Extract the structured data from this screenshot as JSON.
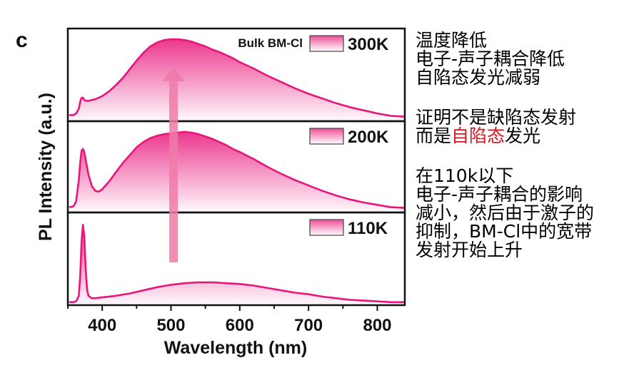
{
  "panel_label": "c",
  "chart_data": {
    "type": "line",
    "layout": "stacked-panels",
    "xlabel": "Wavelength (nm)",
    "ylabel": "PL Intensity (a.u.)",
    "xlim": [
      350,
      840
    ],
    "xticks": [
      400,
      500,
      600,
      700,
      800
    ],
    "sample_label": "Bulk BM-Cl",
    "color": "#e8157a",
    "arrow_color": "#f07aa8",
    "panels": [
      {
        "name": "300K",
        "ylim": [
          0,
          1.12
        ],
        "x": [
          352,
          358,
          362,
          366,
          368,
          370,
          372,
          374,
          376,
          380,
          385,
          390,
          395,
          400,
          410,
          420,
          430,
          440,
          450,
          460,
          470,
          480,
          490,
          500,
          510,
          520,
          530,
          540,
          550,
          560,
          570,
          580,
          590,
          600,
          620,
          640,
          660,
          680,
          700,
          720,
          740,
          760,
          780,
          800,
          820,
          840
        ],
        "y": [
          0.06,
          0.06,
          0.08,
          0.14,
          0.23,
          0.28,
          0.28,
          0.25,
          0.24,
          0.24,
          0.25,
          0.26,
          0.28,
          0.3,
          0.36,
          0.44,
          0.53,
          0.64,
          0.75,
          0.85,
          0.93,
          0.98,
          1.01,
          1.02,
          1.02,
          1.01,
          0.99,
          0.96,
          0.93,
          0.89,
          0.86,
          0.82,
          0.78,
          0.73,
          0.65,
          0.56,
          0.48,
          0.4,
          0.33,
          0.27,
          0.21,
          0.16,
          0.12,
          0.08,
          0.05,
          0.04
        ]
      },
      {
        "name": "200K",
        "ylim": [
          0,
          1.12
        ],
        "x": [
          352,
          358,
          362,
          366,
          368,
          370,
          372,
          374,
          376,
          380,
          385,
          390,
          395,
          400,
          410,
          420,
          430,
          440,
          450,
          460,
          470,
          480,
          490,
          500,
          510,
          520,
          530,
          540,
          550,
          560,
          570,
          580,
          590,
          600,
          620,
          640,
          660,
          680,
          700,
          720,
          740,
          760,
          780,
          800,
          820,
          840
        ],
        "y": [
          0.05,
          0.06,
          0.12,
          0.4,
          0.62,
          0.78,
          0.8,
          0.76,
          0.66,
          0.47,
          0.32,
          0.26,
          0.25,
          0.28,
          0.38,
          0.5,
          0.62,
          0.72,
          0.82,
          0.89,
          0.94,
          0.97,
          0.99,
          1.0,
          1.01,
          1.02,
          1.01,
          0.99,
          0.96,
          0.93,
          0.89,
          0.85,
          0.8,
          0.76,
          0.67,
          0.57,
          0.48,
          0.4,
          0.33,
          0.26,
          0.2,
          0.15,
          0.11,
          0.08,
          0.05,
          0.04
        ]
      },
      {
        "name": "110K",
        "ylim": [
          0,
          1.12
        ],
        "x": [
          352,
          358,
          362,
          366,
          368,
          370,
          372,
          374,
          376,
          378,
          380,
          385,
          390,
          400,
          420,
          440,
          460,
          480,
          500,
          520,
          540,
          560,
          580,
          600,
          620,
          640,
          660,
          680,
          700,
          720,
          740,
          760,
          780,
          800,
          820,
          840
        ],
        "y": [
          0.02,
          0.02,
          0.03,
          0.1,
          0.35,
          0.8,
          1.0,
          0.85,
          0.45,
          0.18,
          0.1,
          0.07,
          0.07,
          0.08,
          0.1,
          0.13,
          0.17,
          0.21,
          0.24,
          0.26,
          0.27,
          0.27,
          0.26,
          0.25,
          0.23,
          0.2,
          0.17,
          0.14,
          0.12,
          0.09,
          0.07,
          0.05,
          0.04,
          0.03,
          0.02,
          0.02
        ]
      }
    ]
  },
  "notes": [
    {
      "lines": [
        [
          {
            "text": "温度降低"
          }
        ],
        [
          {
            "text": "电子-声子耦合降低"
          }
        ],
        [
          {
            "text": "自陷态发光减弱"
          }
        ]
      ]
    },
    {
      "lines": [
        [
          {
            "text": "证明不是缺陷态发射"
          }
        ],
        [
          {
            "text": "而是"
          },
          {
            "text": "自陷态",
            "highlight": true
          },
          {
            "text": "发光"
          }
        ]
      ]
    },
    {
      "lines": [
        [
          {
            "text": "在110k以下"
          }
        ],
        [
          {
            "text": "电子-声子耦合的影响"
          }
        ],
        [
          {
            "text": "减小，然后由于激子的"
          }
        ],
        [
          {
            "text": "抑制，BM-Cl中的宽带"
          }
        ],
        [
          {
            "text": "发射开始上升"
          }
        ]
      ]
    }
  ]
}
